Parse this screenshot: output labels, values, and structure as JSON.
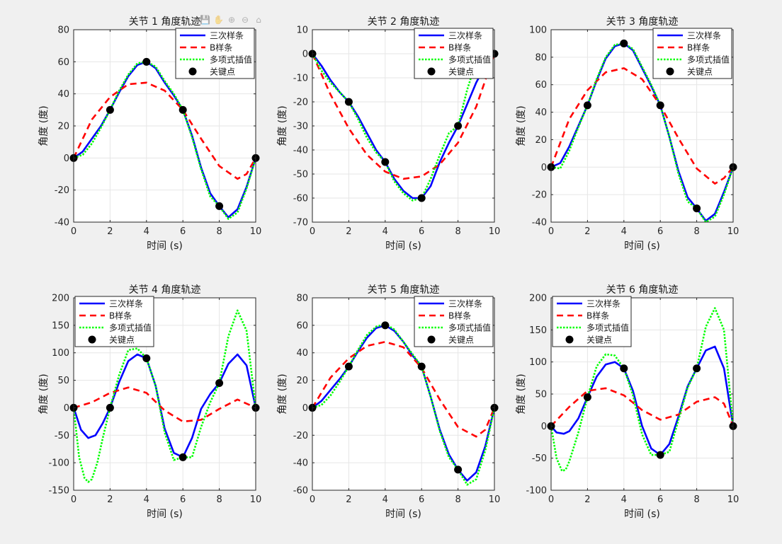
{
  "toolbar": [
    {
      "name": "save-icon",
      "glyph": "💾"
    },
    {
      "name": "pan-icon",
      "glyph": "✋"
    },
    {
      "name": "zoom-in-icon",
      "glyph": "⊕"
    },
    {
      "name": "zoom-out-icon",
      "glyph": "⊖"
    },
    {
      "name": "home-icon",
      "glyph": "⌂"
    }
  ],
  "colors": {
    "figure_bg": "#f0f0f0",
    "axes_bg": "#ffffff",
    "cubic": "#0000ff",
    "bspline": "#ff0000",
    "poly": "#00ff00",
    "keypoint": "#000000",
    "grid": "#e6e6e6",
    "axis_line": "#262626"
  },
  "chart_data": [
    {
      "type": "line",
      "title": "关节 1 角度轨迹",
      "xlabel": "时间 (s)",
      "ylabel": "角度 (度)",
      "xlim": [
        0,
        10
      ],
      "ylim": [
        -40,
        80
      ],
      "xticks": [
        0,
        2,
        4,
        6,
        8,
        10
      ],
      "yticks": [
        -40,
        -20,
        0,
        20,
        40,
        60,
        80
      ],
      "grid": true,
      "legend_position": "top-right",
      "keypoints": {
        "x": [
          0,
          2,
          4,
          6,
          8,
          10
        ],
        "y": [
          0,
          30,
          60,
          30,
          -30,
          0
        ]
      },
      "series": [
        {
          "name": "三次样条",
          "style": "solid",
          "key": "cubic",
          "x": [
            0,
            0.5,
            1,
            1.5,
            2,
            2.5,
            3,
            3.5,
            4,
            4.5,
            5,
            5.5,
            6,
            6.5,
            7,
            7.5,
            8,
            8.5,
            9,
            9.5,
            10
          ],
          "y": [
            0,
            4,
            12,
            20,
            30,
            41,
            51,
            58,
            60,
            56,
            47,
            39,
            30,
            14,
            -6,
            -22,
            -30,
            -37,
            -32,
            -18,
            0
          ]
        },
        {
          "name": "B样条",
          "style": "dashed",
          "key": "bspline",
          "x": [
            0,
            1,
            2,
            3,
            4,
            5,
            6,
            7,
            8,
            9,
            9.5,
            10
          ],
          "y": [
            0,
            24,
            38,
            46,
            47,
            42,
            30,
            12,
            -5,
            -13,
            -10,
            0
          ]
        },
        {
          "name": "多项式插值",
          "style": "dotted",
          "key": "poly",
          "x": [
            0,
            0.5,
            1,
            1.5,
            2,
            2.5,
            3,
            3.5,
            4,
            4.5,
            5,
            5.5,
            6,
            6.5,
            7,
            7.5,
            8,
            8.5,
            9,
            9.5,
            10
          ],
          "y": [
            0,
            2,
            9,
            19,
            30,
            42,
            52,
            59,
            60,
            57,
            48,
            40,
            30,
            13,
            -7,
            -24,
            -30,
            -38,
            -34,
            -19,
            0
          ]
        },
        {
          "name": "关键点",
          "style": "markers",
          "key": "keypoint"
        }
      ]
    },
    {
      "type": "line",
      "title": "关节 2 角度轨迹",
      "xlabel": "时间 (s)",
      "ylabel": "角度 (度)",
      "xlim": [
        0,
        10
      ],
      "ylim": [
        -70,
        10
      ],
      "xticks": [
        0,
        2,
        4,
        6,
        8,
        10
      ],
      "yticks": [
        -70,
        -60,
        -50,
        -40,
        -30,
        -20,
        -10,
        0,
        10
      ],
      "grid": true,
      "legend_position": "top-right",
      "keypoints": {
        "x": [
          0,
          2,
          4,
          6,
          8,
          10
        ],
        "y": [
          0,
          -20,
          -45,
          -60,
          -30,
          0
        ]
      },
      "series": [
        {
          "name": "三次样条",
          "style": "solid",
          "key": "cubic",
          "x": [
            0,
            0.5,
            1,
            1.5,
            2,
            2.5,
            3,
            3.5,
            4,
            4.5,
            5,
            5.5,
            6,
            6.5,
            7,
            7.5,
            8,
            8.5,
            9,
            9.5,
            10
          ],
          "y": [
            0,
            -5,
            -11,
            -16,
            -20,
            -26,
            -33,
            -40,
            -45,
            -52,
            -57,
            -60,
            -60,
            -55,
            -45,
            -37,
            -30,
            -21,
            -12,
            -5,
            0
          ]
        },
        {
          "name": "B样条",
          "style": "dashed",
          "key": "bspline",
          "x": [
            0,
            1,
            2,
            3,
            4,
            5,
            6,
            7,
            8,
            9,
            10
          ],
          "y": [
            0,
            -17,
            -31,
            -42,
            -49,
            -52,
            -51,
            -46,
            -37,
            -22,
            0
          ]
        },
        {
          "name": "多项式插值",
          "style": "dotted",
          "key": "poly",
          "x": [
            0,
            0.5,
            1,
            1.5,
            2,
            2.5,
            3,
            3.5,
            4,
            4.5,
            5,
            5.5,
            6,
            6.5,
            7,
            7.5,
            8,
            8.5,
            9,
            9.5,
            10
          ],
          "y": [
            0,
            -7,
            -12,
            -16,
            -20,
            -27,
            -35,
            -41,
            -45,
            -53,
            -58,
            -61,
            -60,
            -52,
            -42,
            -33,
            -30,
            -15,
            -3,
            2,
            0
          ]
        },
        {
          "name": "关键点",
          "style": "markers",
          "key": "keypoint"
        }
      ]
    },
    {
      "type": "line",
      "title": "关节 3 角度轨迹",
      "xlabel": "时间 (s)",
      "ylabel": "角度 (度)",
      "xlim": [
        0,
        10
      ],
      "ylim": [
        -40,
        100
      ],
      "xticks": [
        0,
        2,
        4,
        6,
        8,
        10
      ],
      "yticks": [
        -40,
        -20,
        0,
        20,
        40,
        60,
        80,
        100
      ],
      "grid": true,
      "legend_position": "top-right",
      "keypoints": {
        "x": [
          0,
          2,
          4,
          6,
          8,
          10
        ],
        "y": [
          0,
          45,
          90,
          45,
          -30,
          0
        ]
      },
      "series": [
        {
          "name": "三次样条",
          "style": "solid",
          "key": "cubic",
          "x": [
            0,
            0.5,
            1,
            1.5,
            2,
            2.5,
            3,
            3.5,
            4,
            4.5,
            5,
            5.5,
            6,
            6.5,
            7,
            7.5,
            8,
            8.5,
            9,
            9.5,
            10
          ],
          "y": [
            0,
            3,
            15,
            30,
            45,
            63,
            79,
            88,
            90,
            85,
            72,
            59,
            45,
            22,
            -3,
            -22,
            -30,
            -39,
            -34,
            -18,
            0
          ]
        },
        {
          "name": "B样条",
          "style": "dashed",
          "key": "bspline",
          "x": [
            0,
            1,
            2,
            3,
            4,
            5,
            6,
            7,
            8,
            9,
            9.5,
            10
          ],
          "y": [
            0,
            35,
            56,
            69,
            72,
            64,
            45,
            21,
            -1,
            -12,
            -8,
            0
          ]
        },
        {
          "name": "多项式插值",
          "style": "dotted",
          "key": "poly",
          "x": [
            0,
            0.5,
            1,
            1.5,
            2,
            2.5,
            3,
            3.5,
            4,
            4.5,
            5,
            5.5,
            6,
            6.5,
            7,
            7.5,
            8,
            8.5,
            9,
            9.5,
            10
          ],
          "y": [
            0,
            -1,
            12,
            29,
            45,
            64,
            80,
            89,
            90,
            86,
            73,
            60,
            45,
            22,
            -5,
            -25,
            -30,
            -40,
            -36,
            -20,
            0
          ]
        },
        {
          "name": "关键点",
          "style": "markers",
          "key": "keypoint"
        }
      ]
    },
    {
      "type": "line",
      "title": "关节 4 角度轨迹",
      "xlabel": "时间 (s)",
      "ylabel": "角度 (度)",
      "xlim": [
        0,
        10
      ],
      "ylim": [
        -150,
        200
      ],
      "xticks": [
        0,
        2,
        4,
        6,
        8,
        10
      ],
      "yticks": [
        -150,
        -100,
        -50,
        0,
        50,
        100,
        150,
        200
      ],
      "grid": true,
      "legend_position": "top-left",
      "keypoints": {
        "x": [
          0,
          2,
          4,
          6,
          8,
          10
        ],
        "y": [
          0,
          0,
          90,
          -90,
          45,
          0
        ]
      },
      "series": [
        {
          "name": "三次样条",
          "style": "solid",
          "key": "cubic",
          "x": [
            0,
            0.4,
            0.8,
            1.2,
            1.6,
            2,
            2.5,
            3,
            3.5,
            4,
            4.5,
            5,
            5.5,
            6,
            6.5,
            7,
            7.5,
            8,
            8.5,
            9,
            9.5,
            10
          ],
          "y": [
            0,
            -40,
            -55,
            -50,
            -28,
            0,
            47,
            85,
            97,
            90,
            40,
            -38,
            -82,
            -90,
            -55,
            -2,
            25,
            45,
            80,
            97,
            77,
            0
          ]
        },
        {
          "name": "B样条",
          "style": "dashed",
          "key": "bspline",
          "x": [
            0,
            1,
            2,
            3,
            4,
            5,
            6,
            7,
            8,
            9,
            10
          ],
          "y": [
            0,
            10,
            27,
            37,
            27,
            -5,
            -25,
            -22,
            -2,
            15,
            0
          ]
        },
        {
          "name": "多项式插值",
          "style": "dotted",
          "key": "poly",
          "x": [
            0,
            0.3,
            0.6,
            0.8,
            1,
            1.3,
            1.6,
            2,
            2.5,
            3,
            3.5,
            4,
            4.5,
            5,
            5.5,
            6,
            6.5,
            7,
            7.5,
            8,
            8.5,
            9,
            9.5,
            10
          ],
          "y": [
            0,
            -90,
            -128,
            -135,
            -130,
            -100,
            -55,
            0,
            60,
            105,
            108,
            90,
            40,
            -45,
            -95,
            -90,
            -90,
            -35,
            10,
            45,
            130,
            177,
            140,
            0
          ]
        },
        {
          "name": "关键点",
          "style": "markers",
          "key": "keypoint"
        }
      ]
    },
    {
      "type": "line",
      "title": "关节 5 角度轨迹",
      "xlabel": "时间 (s)",
      "ylabel": "角度 (度)",
      "xlim": [
        0,
        10
      ],
      "ylim": [
        -60,
        80
      ],
      "xticks": [
        0,
        2,
        4,
        6,
        8,
        10
      ],
      "yticks": [
        -60,
        -40,
        -20,
        0,
        20,
        40,
        60,
        80
      ],
      "grid": true,
      "legend_position": "top-right",
      "keypoints": {
        "x": [
          0,
          2,
          4,
          6,
          8,
          10
        ],
        "y": [
          0,
          30,
          60,
          30,
          -45,
          0
        ]
      },
      "series": [
        {
          "name": "三次样条",
          "style": "solid",
          "key": "cubic",
          "x": [
            0,
            0.5,
            1,
            1.5,
            2,
            2.5,
            3,
            3.5,
            4,
            4.5,
            5,
            5.5,
            6,
            6.5,
            7,
            7.5,
            8,
            8.5,
            9,
            9.5,
            10
          ],
          "y": [
            0,
            5,
            13,
            21,
            30,
            41,
            51,
            58,
            60,
            56,
            48,
            38,
            30,
            8,
            -16,
            -34,
            -45,
            -53,
            -47,
            -28,
            0
          ]
        },
        {
          "name": "B样条",
          "style": "dashed",
          "key": "bspline",
          "x": [
            0,
            1,
            2,
            3,
            4,
            5,
            6,
            7,
            8,
            9,
            9.5,
            10
          ],
          "y": [
            0,
            22,
            36,
            45,
            48,
            44,
            29,
            6,
            -14,
            -21,
            -16,
            0
          ]
        },
        {
          "name": "多项式插值",
          "style": "dotted",
          "key": "poly",
          "x": [
            0,
            0.5,
            1,
            1.5,
            2,
            2.5,
            3,
            3.5,
            4,
            4.5,
            5,
            5.5,
            6,
            6.5,
            7,
            7.5,
            8,
            8.5,
            9,
            9.5,
            10
          ],
          "y": [
            0,
            2,
            9,
            19,
            30,
            42,
            53,
            59,
            61,
            57,
            48,
            39,
            30,
            8,
            -17,
            -36,
            -45,
            -56,
            -52,
            -31,
            0
          ]
        },
        {
          "name": "关键点",
          "style": "markers",
          "key": "keypoint"
        }
      ]
    },
    {
      "type": "line",
      "title": "关节 6 角度轨迹",
      "xlabel": "时间 (s)",
      "ylabel": "角度 (度)",
      "xlim": [
        0,
        10
      ],
      "ylim": [
        -100,
        200
      ],
      "xticks": [
        0,
        2,
        4,
        6,
        8,
        10
      ],
      "yticks": [
        -100,
        -50,
        0,
        50,
        100,
        150,
        200
      ],
      "grid": true,
      "legend_position": "top-left",
      "keypoints": {
        "x": [
          0,
          2,
          4,
          6,
          8,
          10
        ],
        "y": [
          0,
          45,
          90,
          -45,
          90,
          0
        ]
      },
      "series": [
        {
          "name": "三次样条",
          "style": "solid",
          "key": "cubic",
          "x": [
            0,
            0.3,
            0.7,
            1,
            1.5,
            2,
            2.5,
            3,
            3.5,
            4,
            4.5,
            5,
            5.5,
            6,
            6.5,
            7,
            7.5,
            8,
            8.5,
            9,
            9.5,
            10
          ],
          "y": [
            0,
            -10,
            -12,
            -8,
            12,
            45,
            77,
            96,
            100,
            90,
            55,
            0,
            -35,
            -45,
            -28,
            15,
            62,
            90,
            118,
            124,
            90,
            0
          ]
        },
        {
          "name": "B样条",
          "style": "dashed",
          "key": "bspline",
          "x": [
            0,
            1,
            2,
            3,
            4,
            5,
            6,
            7,
            8,
            9,
            9.5,
            10
          ],
          "y": [
            0,
            30,
            55,
            59,
            48,
            25,
            10,
            18,
            38,
            45,
            35,
            0
          ]
        },
        {
          "name": "多项式插值",
          "style": "dotted",
          "key": "poly",
          "x": [
            0,
            0.3,
            0.6,
            0.8,
            1,
            1.5,
            2,
            2.5,
            3,
            3.5,
            4,
            4.5,
            5,
            5.5,
            6,
            6.5,
            7,
            7.5,
            8,
            8.5,
            9,
            9.5,
            10
          ],
          "y": [
            0,
            -50,
            -70,
            -68,
            -55,
            -10,
            45,
            93,
            112,
            110,
            90,
            48,
            -13,
            -45,
            -45,
            -40,
            10,
            60,
            90,
            155,
            184,
            150,
            0
          ]
        },
        {
          "name": "关键点",
          "style": "markers",
          "key": "keypoint"
        }
      ]
    }
  ]
}
